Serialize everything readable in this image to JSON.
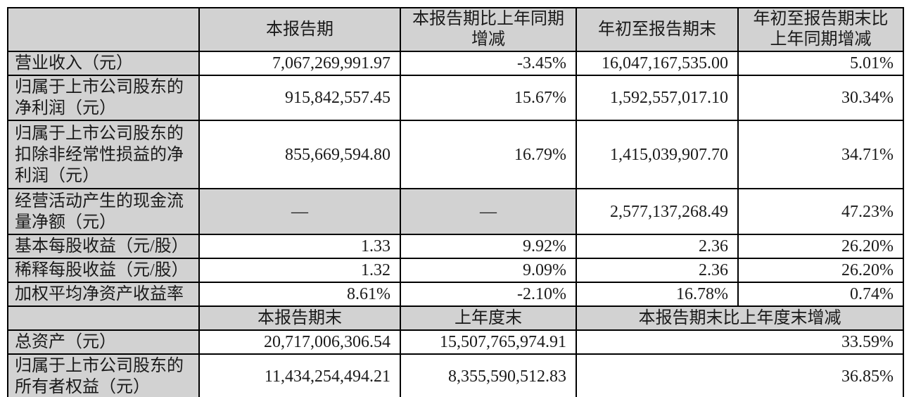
{
  "table": {
    "columns": {
      "corner": "",
      "h1": "本报告期",
      "h2": "本报告期比上年同期\n增减",
      "h3": "年初至报告期末",
      "h4": "年初至报告期末比\n上年同期增减"
    },
    "rows": [
      {
        "label": "营业收入（元）",
        "current": "7,067,269,991.97",
        "yoy": "-3.45%",
        "ytd": "16,047,167,535.00",
        "ytd_yoy": "5.01%"
      },
      {
        "label": "归属于上市公司股东的净利润（元）",
        "current": "915,842,557.45",
        "yoy": "15.67%",
        "ytd": "1,592,557,017.10",
        "ytd_yoy": "30.34%"
      },
      {
        "label": "归属于上市公司股东的扣除非经常性损益的净利润（元）",
        "current": "855,669,594.80",
        "yoy": "16.79%",
        "ytd": "1,415,039,907.70",
        "ytd_yoy": "34.71%"
      },
      {
        "label": "经营活动产生的现金流量净额（元）",
        "current": "—",
        "yoy": "—",
        "ytd": "2,577,137,268.49",
        "ytd_yoy": "47.23%"
      },
      {
        "label": "基本每股收益（元/股）",
        "current": "1.33",
        "yoy": "9.92%",
        "ytd": "2.36",
        "ytd_yoy": "26.20%"
      },
      {
        "label": "稀释每股收益（元/股）",
        "current": "1.32",
        "yoy": "9.09%",
        "ytd": "2.36",
        "ytd_yoy": "26.20%"
      },
      {
        "label": "加权平均净资产收益率",
        "current": "8.61%",
        "yoy": "-2.10%",
        "ytd": "16.78%",
        "ytd_yoy": "0.74%"
      }
    ],
    "subheader": {
      "corner": "",
      "h1": "本报告期末",
      "h2": "上年度末",
      "h34": "本报告期末比上年度末增减"
    },
    "bottom_rows": [
      {
        "label": "总资产（元）",
        "end": "20,717,006,306.54",
        "prev_end": "15,507,765,974.91",
        "change": "33.59%"
      },
      {
        "label": "归属于上市公司股东的所有者权益（元）",
        "end": "11,434,254,494.21",
        "prev_end": "8,355,590,512.83",
        "change": "36.85%"
      }
    ],
    "colors": {
      "shaded_cell": "#d2d2d2",
      "border": "#000000",
      "data_cell": "#ffffff"
    }
  }
}
